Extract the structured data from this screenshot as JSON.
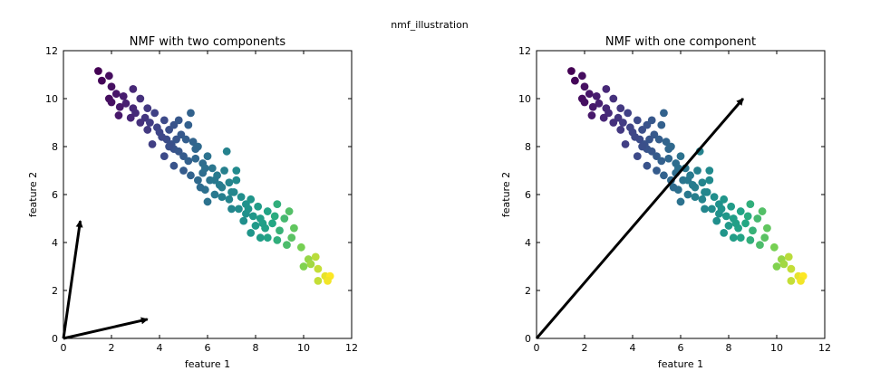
{
  "figure_title": "nmf_illustration",
  "chart_data": [
    {
      "type": "scatter",
      "title": "NMF with two components",
      "xlabel": "feature 1",
      "ylabel": "feature 2",
      "xlim": [
        0,
        12
      ],
      "ylim": [
        0,
        12
      ],
      "xticks": [
        "0",
        "2",
        "4",
        "6",
        "8",
        "10",
        "12"
      ],
      "yticks": [
        "0",
        "2",
        "4",
        "6",
        "8",
        "10",
        "12"
      ],
      "grid": false,
      "colormap": "viridis",
      "arrows": [
        {
          "from": [
            0,
            0
          ],
          "to": [
            0.7,
            4.9
          ]
        },
        {
          "from": [
            0,
            0
          ],
          "to": [
            3.5,
            0.8
          ]
        }
      ]
    },
    {
      "type": "scatter",
      "title": "NMF with one component",
      "xlabel": "feature 1",
      "ylabel": "feature 2",
      "xlim": [
        0,
        12
      ],
      "ylim": [
        0,
        12
      ],
      "xticks": [
        "0",
        "2",
        "4",
        "6",
        "8",
        "10",
        "12"
      ],
      "yticks": [
        "0",
        "2",
        "4",
        "6",
        "8",
        "10",
        "12"
      ],
      "grid": false,
      "colormap": "viridis",
      "arrows": [
        {
          "from": [
            0,
            0
          ],
          "to": [
            8.6,
            10.0
          ]
        }
      ]
    }
  ],
  "points": [
    [
      1.45,
      11.15
    ],
    [
      1.9,
      10.95
    ],
    [
      1.6,
      10.75
    ],
    [
      2.0,
      10.5
    ],
    [
      2.2,
      10.2
    ],
    [
      1.9,
      10.0
    ],
    [
      2.5,
      10.1
    ],
    [
      2.9,
      10.4
    ],
    [
      2.6,
      9.8
    ],
    [
      2.0,
      9.85
    ],
    [
      2.35,
      9.65
    ],
    [
      3.2,
      10.0
    ],
    [
      3.5,
      9.6
    ],
    [
      2.9,
      9.6
    ],
    [
      3.0,
      9.4
    ],
    [
      2.8,
      9.2
    ],
    [
      2.3,
      9.3
    ],
    [
      3.4,
      9.2
    ],
    [
      3.8,
      9.4
    ],
    [
      3.6,
      9.0
    ],
    [
      3.9,
      8.8
    ],
    [
      4.2,
      9.1
    ],
    [
      4.0,
      8.6
    ],
    [
      4.4,
      8.7
    ],
    [
      4.6,
      8.9
    ],
    [
      4.8,
      9.1
    ],
    [
      5.2,
      8.9
    ],
    [
      5.3,
      9.4
    ],
    [
      3.2,
      9.0
    ],
    [
      3.5,
      8.7
    ],
    [
      4.3,
      8.3
    ],
    [
      4.5,
      8.1
    ],
    [
      4.6,
      7.9
    ],
    [
      4.9,
      8.5
    ],
    [
      5.1,
      8.3
    ],
    [
      5.4,
      8.2
    ],
    [
      5.6,
      8.0
    ],
    [
      4.8,
      7.8
    ],
    [
      4.2,
      7.6
    ],
    [
      5.0,
      7.6
    ],
    [
      5.2,
      7.4
    ],
    [
      5.5,
      7.5
    ],
    [
      5.8,
      7.3
    ],
    [
      6.0,
      7.6
    ],
    [
      6.2,
      7.1
    ],
    [
      4.6,
      7.2
    ],
    [
      5.0,
      7.0
    ],
    [
      5.3,
      6.8
    ],
    [
      5.6,
      6.6
    ],
    [
      5.8,
      6.9
    ],
    [
      6.1,
      6.6
    ],
    [
      6.4,
      6.8
    ],
    [
      6.6,
      6.3
    ],
    [
      6.9,
      6.5
    ],
    [
      7.2,
      6.6
    ],
    [
      5.9,
      6.2
    ],
    [
      6.3,
      6.0
    ],
    [
      6.6,
      5.9
    ],
    [
      6.9,
      5.8
    ],
    [
      7.1,
      6.1
    ],
    [
      7.4,
      5.9
    ],
    [
      7.6,
      5.6
    ],
    [
      7.8,
      5.8
    ],
    [
      8.1,
      5.5
    ],
    [
      7.3,
      5.4
    ],
    [
      7.6,
      5.2
    ],
    [
      7.9,
      5.1
    ],
    [
      8.2,
      5.0
    ],
    [
      8.5,
      5.3
    ],
    [
      8.8,
      5.1
    ],
    [
      7.5,
      4.9
    ],
    [
      8.0,
      4.7
    ],
    [
      8.4,
      4.6
    ],
    [
      8.7,
      4.8
    ],
    [
      9.2,
      5.0
    ],
    [
      9.0,
      4.5
    ],
    [
      9.5,
      4.2
    ],
    [
      9.6,
      4.6
    ],
    [
      8.9,
      4.1
    ],
    [
      8.5,
      4.2
    ],
    [
      9.3,
      3.9
    ],
    [
      9.9,
      3.8
    ],
    [
      10.2,
      3.3
    ],
    [
      10.5,
      3.4
    ],
    [
      10.0,
      3.0
    ],
    [
      10.3,
      3.1
    ],
    [
      10.6,
      2.9
    ],
    [
      10.9,
      2.6
    ],
    [
      11.1,
      2.6
    ],
    [
      10.6,
      2.4
    ],
    [
      11.0,
      2.4
    ],
    [
      6.8,
      7.8
    ],
    [
      7.2,
      7.0
    ],
    [
      6.7,
      7.0
    ],
    [
      5.5,
      7.9
    ],
    [
      4.4,
      8.0
    ],
    [
      5.9,
      7.1
    ],
    [
      6.3,
      6.6
    ],
    [
      7.0,
      6.1
    ],
    [
      7.7,
      5.4
    ],
    [
      8.3,
      4.8
    ],
    [
      6.5,
      6.4
    ],
    [
      4.7,
      8.3
    ],
    [
      3.7,
      8.1
    ],
    [
      4.1,
      8.4
    ],
    [
      5.7,
      6.3
    ],
    [
      6.0,
      5.7
    ],
    [
      7.0,
      5.4
    ],
    [
      8.9,
      5.6
    ],
    [
      9.4,
      5.3
    ],
    [
      8.2,
      4.2
    ],
    [
      7.8,
      4.4
    ]
  ],
  "subplot_boxes": [
    {
      "x": 70,
      "y": 56,
      "w": 318,
      "h": 318
    },
    {
      "x": 592,
      "y": 56,
      "w": 318,
      "h": 318
    }
  ]
}
